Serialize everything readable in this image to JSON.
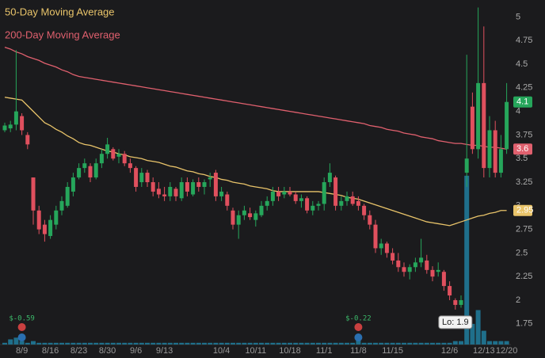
{
  "chart_data": {
    "type": "candlestick",
    "categories": [
      null,
      null,
      null,
      "8/9",
      null,
      null,
      null,
      null,
      "8/16",
      null,
      null,
      null,
      null,
      "8/23",
      null,
      null,
      null,
      null,
      "8/30",
      null,
      null,
      null,
      null,
      "9/6",
      null,
      null,
      null,
      null,
      "9/13",
      null,
      null,
      null,
      null,
      null,
      null,
      null,
      null,
      null,
      "10/4",
      null,
      null,
      null,
      null,
      null,
      "10/11",
      null,
      null,
      null,
      null,
      null,
      "10/18",
      null,
      null,
      null,
      null,
      null,
      "11/1",
      null,
      null,
      null,
      null,
      null,
      "11/8",
      null,
      null,
      null,
      null,
      null,
      "11/15",
      null,
      null,
      null,
      null,
      null,
      null,
      null,
      null,
      null,
      "12/6",
      null,
      null,
      null,
      null,
      null,
      "12/13",
      null,
      null,
      null,
      "12/20"
    ],
    "open": [
      3.8,
      3.82,
      3.86,
      3.95,
      3.75,
      3.3,
      2.95,
      2.8,
      2.68,
      2.8,
      2.95,
      3.0,
      3.15,
      3.3,
      3.4,
      3.42,
      3.3,
      3.45,
      3.55,
      3.6,
      3.52,
      3.55,
      3.45,
      3.4,
      3.25,
      3.35,
      3.25,
      3.18,
      3.12,
      3.1,
      3.18,
      3.08,
      3.25,
      3.12,
      3.25,
      3.2,
      3.28,
      3.35,
      3.1,
      3.12,
      2.95,
      2.8,
      2.9,
      2.92,
      2.85,
      2.9,
      3.0,
      3.05,
      3.15,
      3.12,
      3.15,
      3.12,
      3.05,
      3.08,
      2.95,
      3.0,
      3.02,
      3.25,
      3.3,
      3.0,
      3.05,
      3.1,
      3.05,
      3.0,
      2.9,
      2.8,
      2.55,
      2.6,
      2.5,
      2.42,
      2.35,
      2.3,
      2.35,
      2.4,
      2.42,
      2.32,
      2.3,
      2.3,
      2.15,
      2.0,
      1.95,
      3.35,
      4.05,
      3.6,
      4.3,
      3.4,
      3.8,
      3.35,
      3.6
    ],
    "high": [
      3.88,
      3.9,
      4.65,
      3.98,
      3.78,
      3.3,
      3.0,
      2.85,
      2.9,
      3.0,
      3.1,
      3.25,
      3.35,
      3.45,
      3.5,
      3.45,
      3.5,
      3.6,
      3.72,
      3.62,
      3.6,
      3.58,
      3.5,
      3.42,
      3.4,
      3.38,
      3.3,
      3.25,
      3.2,
      3.25,
      3.2,
      3.3,
      3.3,
      3.28,
      3.3,
      3.28,
      3.35,
      3.38,
      3.2,
      3.15,
      2.98,
      2.95,
      3.0,
      2.98,
      2.95,
      3.05,
      3.1,
      3.2,
      3.2,
      3.2,
      3.2,
      3.15,
      3.12,
      3.1,
      3.05,
      3.05,
      3.3,
      3.45,
      3.32,
      3.1,
      3.15,
      3.15,
      3.1,
      3.02,
      2.95,
      2.85,
      2.65,
      2.62,
      2.55,
      2.5,
      2.4,
      2.38,
      2.45,
      2.65,
      2.48,
      2.36,
      2.4,
      2.32,
      2.2,
      2.02,
      2.05,
      4.6,
      4.2,
      5.1,
      4.9,
      3.95,
      3.9,
      3.75,
      4.3
    ],
    "low": [
      3.78,
      3.78,
      3.8,
      3.75,
      3.6,
      2.8,
      2.7,
      2.62,
      2.65,
      2.75,
      2.9,
      2.98,
      3.1,
      3.28,
      3.35,
      3.25,
      3.28,
      3.4,
      3.5,
      3.48,
      3.45,
      3.42,
      3.35,
      3.15,
      3.2,
      3.2,
      3.1,
      3.08,
      3.05,
      3.05,
      3.05,
      3.05,
      3.1,
      3.1,
      3.15,
      3.12,
      3.2,
      3.05,
      3.05,
      2.95,
      2.75,
      2.65,
      2.85,
      2.85,
      2.78,
      2.88,
      2.95,
      3.0,
      3.05,
      3.08,
      3.1,
      3.02,
      2.98,
      2.92,
      2.9,
      2.95,
      2.95,
      3.2,
      2.95,
      2.95,
      3.0,
      3.0,
      2.95,
      2.85,
      2.75,
      2.5,
      2.48,
      2.45,
      2.38,
      2.3,
      2.25,
      2.22,
      2.3,
      2.35,
      2.28,
      2.2,
      2.25,
      2.1,
      2.0,
      1.9,
      1.92,
      3.2,
      3.55,
      3.5,
      3.3,
      3.3,
      3.3,
      3.3,
      3.55
    ],
    "close": [
      3.85,
      3.86,
      4.0,
      3.8,
      3.65,
      2.95,
      2.75,
      2.7,
      2.85,
      2.95,
      3.05,
      3.2,
      3.3,
      3.4,
      3.45,
      3.3,
      3.45,
      3.55,
      3.65,
      3.5,
      3.55,
      3.45,
      3.4,
      3.2,
      3.35,
      3.25,
      3.15,
      3.12,
      3.1,
      3.2,
      3.1,
      3.25,
      3.15,
      3.25,
      3.2,
      3.25,
      3.3,
      3.1,
      3.15,
      3.0,
      2.8,
      2.9,
      2.95,
      2.88,
      2.92,
      3.0,
      3.05,
      3.15,
      3.1,
      3.15,
      3.12,
      3.05,
      3.08,
      2.95,
      3.0,
      3.02,
      3.25,
      3.35,
      3.0,
      3.05,
      3.1,
      3.02,
      3.0,
      2.9,
      2.8,
      2.55,
      2.6,
      2.5,
      2.42,
      2.35,
      2.3,
      2.35,
      2.4,
      2.45,
      2.32,
      2.25,
      2.32,
      2.15,
      2.05,
      1.95,
      2.0,
      3.5,
      3.6,
      4.3,
      3.4,
      3.8,
      3.35,
      3.6,
      4.1
    ],
    "up_color": "#26a65b",
    "down_color": "#e0505e",
    "volume": [
      0.5,
      1.5,
      2,
      1,
      0.5,
      1,
      0.5,
      0.5,
      0.5,
      0.5,
      0.5,
      0.5,
      0.5,
      0.5,
      0.5,
      0.5,
      0.5,
      0.5,
      0.5,
      0.5,
      0.5,
      0.5,
      0.5,
      0.5,
      0.5,
      0.5,
      0.5,
      0.5,
      0.5,
      0.5,
      0.5,
      0.5,
      0.5,
      0.5,
      0.5,
      0.5,
      0.5,
      0.5,
      0.5,
      0.5,
      0.5,
      0.5,
      0.5,
      0.5,
      0.5,
      0.5,
      0.5,
      0.5,
      0.5,
      0.5,
      0.5,
      0.5,
      0.5,
      0.5,
      0.5,
      0.5,
      0.5,
      0.5,
      0.5,
      0.5,
      0.5,
      0.5,
      2,
      0.5,
      0.5,
      0.5,
      0.5,
      0.5,
      0.5,
      0.5,
      0.5,
      0.5,
      0.5,
      0.5,
      0.5,
      0.5,
      0.5,
      0.5,
      0.5,
      1,
      1,
      49,
      6,
      10,
      4,
      1,
      1,
      1,
      1
    ],
    "volume_color": "#1f6f8b",
    "vlim": [
      0,
      100
    ],
    "ylim": [
      1.53,
      5.18
    ],
    "yticks": [
      1.75,
      2,
      2.25,
      2.5,
      2.75,
      3,
      3.25,
      3.5,
      3.75,
      4,
      4.25,
      4.5,
      4.75,
      5
    ],
    "series": [
      {
        "name": "50-Day Moving Average",
        "color": "#e9c46a",
        "last_label": "2.95",
        "values": [
          4.15,
          4.14,
          4.13,
          4.12,
          4.06,
          4.0,
          3.94,
          3.88,
          3.85,
          3.81,
          3.78,
          3.74,
          3.71,
          3.67,
          3.65,
          3.64,
          3.62,
          3.6,
          3.58,
          3.57,
          3.55,
          3.54,
          3.52,
          3.51,
          3.5,
          3.48,
          3.47,
          3.46,
          3.44,
          3.42,
          3.41,
          3.39,
          3.37,
          3.36,
          3.34,
          3.33,
          3.31,
          3.3,
          3.28,
          3.27,
          3.25,
          3.24,
          3.23,
          3.21,
          3.2,
          3.19,
          3.18,
          3.16,
          3.15,
          3.15,
          3.15,
          3.15,
          3.15,
          3.15,
          3.15,
          3.15,
          3.14,
          3.13,
          3.12,
          3.11,
          3.09,
          3.08,
          3.07,
          3.05,
          3.03,
          3.01,
          2.99,
          2.97,
          2.95,
          2.93,
          2.91,
          2.89,
          2.87,
          2.85,
          2.83,
          2.82,
          2.81,
          2.8,
          2.79,
          2.81,
          2.83,
          2.85,
          2.87,
          2.89,
          2.9,
          2.92,
          2.93,
          2.95,
          2.95
        ]
      },
      {
        "name": "200-Day Moving Average",
        "color": "#e0606e",
        "last_label": "3.6",
        "values": [
          4.68,
          4.66,
          4.63,
          4.61,
          4.58,
          4.56,
          4.54,
          4.51,
          4.49,
          4.47,
          4.44,
          4.42,
          4.39,
          4.37,
          4.36,
          4.35,
          4.34,
          4.33,
          4.32,
          4.31,
          4.3,
          4.29,
          4.28,
          4.27,
          4.26,
          4.25,
          4.24,
          4.23,
          4.22,
          4.21,
          4.2,
          4.19,
          4.18,
          4.17,
          4.16,
          4.15,
          4.14,
          4.13,
          4.12,
          4.11,
          4.1,
          4.09,
          4.08,
          4.07,
          4.06,
          4.05,
          4.04,
          4.03,
          4.02,
          4.01,
          4.0,
          3.99,
          3.98,
          3.97,
          3.96,
          3.95,
          3.94,
          3.93,
          3.92,
          3.91,
          3.9,
          3.89,
          3.88,
          3.87,
          3.85,
          3.84,
          3.83,
          3.81,
          3.8,
          3.79,
          3.77,
          3.76,
          3.75,
          3.73,
          3.72,
          3.71,
          3.69,
          3.68,
          3.67,
          3.66,
          3.66,
          3.65,
          3.64,
          3.64,
          3.63,
          3.62,
          3.62,
          3.61,
          3.6
        ]
      }
    ],
    "last_close_label": "4.1",
    "low_label": "Lo: 1.9",
    "events": [
      {
        "label": "$-0.59",
        "at": "8/9"
      },
      {
        "label": "$-0.22",
        "at": "11/8"
      }
    ]
  }
}
